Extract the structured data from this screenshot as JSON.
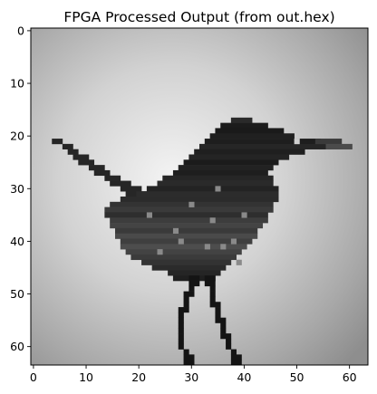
{
  "chart_data": {
    "type": "heatmap",
    "title": "FPGA Processed Output (from out.hex)",
    "xlabel": "",
    "ylabel": "",
    "colormap": "gray",
    "image_size": [
      64,
      64
    ],
    "xlim": [
      -0.5,
      63.5
    ],
    "ylim": [
      63.5,
      -0.5
    ],
    "x_ticks": [
      0,
      10,
      20,
      30,
      40,
      50,
      60
    ],
    "y_ticks": [
      0,
      10,
      20,
      30,
      40,
      50,
      60
    ],
    "grid": false,
    "content": "grayscale 64x64 image of a small bird perched, bright vignette background"
  }
}
